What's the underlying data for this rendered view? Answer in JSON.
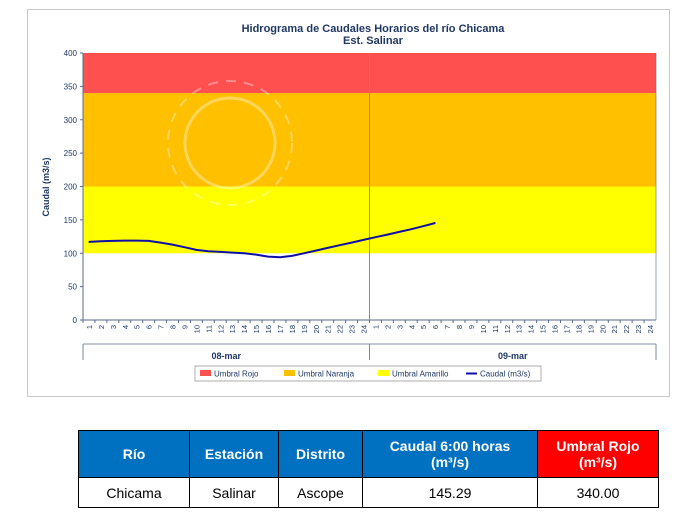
{
  "chart_data": {
    "type": "line",
    "title": "Hidrograma de Caudales Horarios del río Chicama",
    "subtitle": "Est. Salinar",
    "ylabel": "Caudal  (m3/s)",
    "ylim": [
      0,
      400
    ],
    "yticks": [
      "0",
      "50",
      "100",
      "150",
      "200",
      "250",
      "300",
      "350",
      "400"
    ],
    "xticks": [
      "1",
      "2",
      "3",
      "4",
      "5",
      "6",
      "7",
      "8",
      "9",
      "10",
      "11",
      "12",
      "13",
      "14",
      "15",
      "16",
      "17",
      "18",
      "19",
      "20",
      "21",
      "22",
      "23",
      "24",
      "1",
      "2",
      "3",
      "4",
      "5",
      "6",
      "7",
      "8",
      "9",
      "10",
      "11",
      "12",
      "13",
      "14",
      "15",
      "16",
      "17",
      "18",
      "19",
      "20",
      "21",
      "22",
      "23",
      "24"
    ],
    "days": [
      "08-mar",
      "09-mar"
    ],
    "bands": [
      {
        "name": "Umbral Amarillo",
        "from": 100,
        "to": 200,
        "color": "#ffff00"
      },
      {
        "name": "Umbral Naranja",
        "from": 200,
        "to": 340,
        "color": "#ffc000"
      },
      {
        "name": "Umbral Rojo",
        "from": 340,
        "to": 400,
        "color": "#ff5050"
      }
    ],
    "series": [
      {
        "name": "Caudal (m3/s)",
        "color": "#0f0fa8",
        "x": [
          1,
          2,
          3,
          4,
          5,
          6,
          7,
          8,
          9,
          10,
          11,
          12,
          13,
          14,
          15,
          16,
          17,
          18,
          19,
          20,
          21,
          22,
          23,
          24,
          25,
          26,
          27,
          28,
          29,
          30
        ],
        "values": [
          117,
          118,
          118.5,
          119,
          119,
          118.5,
          116,
          113,
          109,
          105,
          103,
          102,
          101,
          100,
          98,
          95,
          94,
          96,
          100,
          104,
          108,
          112,
          116,
          120,
          124,
          128,
          132,
          136,
          140.5,
          145.29
        ]
      }
    ],
    "legend": [
      "Umbral Rojo",
      "Umbral Naranja",
      "Umbral Amarillo",
      "Caudal (m3/s)"
    ],
    "legend_position": "bottom",
    "grid": false
  },
  "table": {
    "headers": [
      "Río",
      "Estación",
      "Distrito",
      "Caudal  6:00 horas",
      "(m³/s)",
      "Umbral Rojo",
      "(m³/s)"
    ],
    "row": [
      "Chicama",
      "Salinar",
      "Ascope",
      "145.29",
      "340.00"
    ]
  }
}
